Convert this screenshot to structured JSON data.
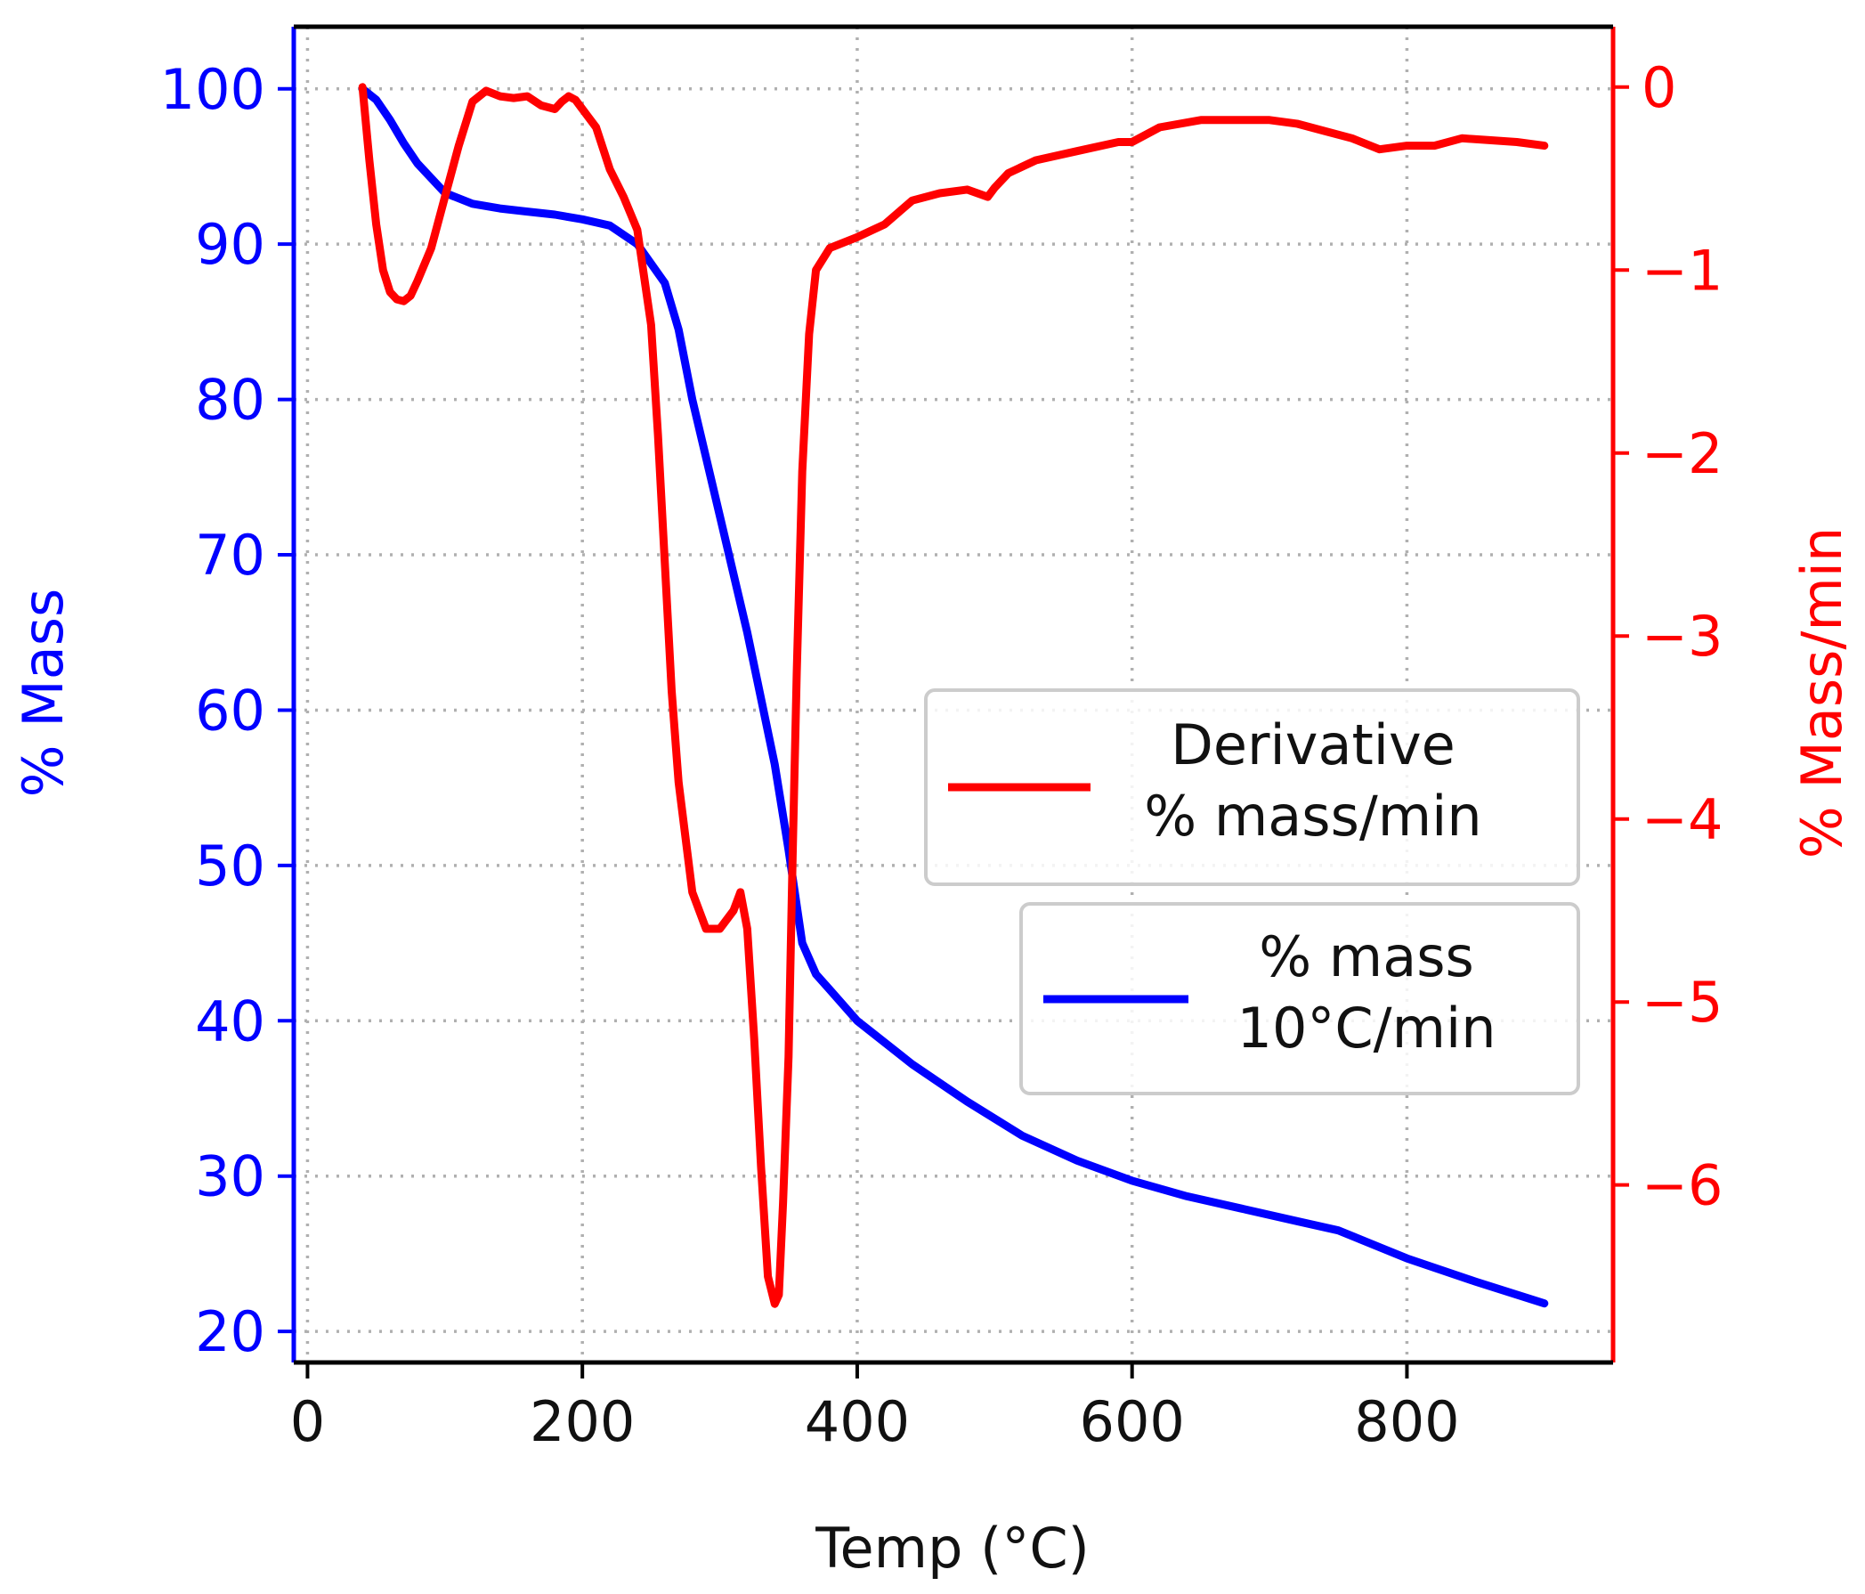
{
  "chart_data": {
    "type": "line",
    "title": "",
    "xlabel": "Temp (°C)",
    "ylabel_left": "% Mass",
    "ylabel_right": "% Mass/min",
    "xlim": [
      -10,
      950
    ],
    "ylim_left": [
      18,
      104
    ],
    "ylim_right": [
      -6.97,
      0.33
    ],
    "xticks": [
      0,
      200,
      400,
      600,
      800
    ],
    "yticks_left": [
      20,
      30,
      40,
      50,
      60,
      70,
      80,
      90,
      100
    ],
    "yticks_right": [
      0,
      -1,
      -2,
      -3,
      -4,
      -5,
      -6
    ],
    "grid": true,
    "colors": {
      "left_axis": "#0000ff",
      "right_axis": "#ff0000",
      "x_axis": "#000000",
      "grid": "#b0b0b0"
    },
    "legend": [
      {
        "series": "derivative",
        "lines": [
          "Derivative",
          "% mass/min"
        ],
        "placement": "center-right upper"
      },
      {
        "series": "mass",
        "lines": [
          "% mass",
          "10°C/min"
        ],
        "placement": "center-right lower"
      }
    ],
    "series": [
      {
        "name": "% mass 10°C/min",
        "key": "mass",
        "axis": "left",
        "color": "#0000ff",
        "x": [
          40,
          50,
          60,
          70,
          80,
          100,
          120,
          140,
          160,
          180,
          200,
          220,
          240,
          260,
          270,
          280,
          300,
          320,
          340,
          350,
          360,
          370,
          380,
          400,
          440,
          480,
          520,
          560,
          600,
          640,
          680,
          720,
          750,
          800,
          850,
          900
        ],
        "y": [
          100,
          99.3,
          98,
          96.5,
          95.2,
          93.3,
          92.6,
          92.3,
          92.1,
          91.9,
          91.6,
          91.2,
          90,
          87.5,
          84.5,
          80,
          72.5,
          65,
          56.5,
          51,
          45,
          43,
          42,
          40,
          37.2,
          34.8,
          32.6,
          31,
          29.7,
          28.7,
          27.9,
          27.1,
          26.5,
          24.7,
          23.2,
          21.8
        ]
      },
      {
        "name": "Derivative % mass/min",
        "key": "derivative",
        "axis": "right",
        "color": "#ff0000",
        "x": [
          40,
          45,
          50,
          55,
          60,
          65,
          70,
          75,
          80,
          90,
          100,
          110,
          120,
          130,
          140,
          150,
          160,
          170,
          180,
          185,
          190,
          195,
          200,
          210,
          220,
          230,
          240,
          250,
          255,
          260,
          265,
          270,
          280,
          290,
          300,
          310,
          315,
          320,
          325,
          330,
          335,
          340,
          343,
          346,
          350,
          353,
          356,
          360,
          365,
          370,
          380,
          400,
          420,
          440,
          460,
          480,
          495,
          500,
          510,
          530,
          560,
          590,
          600,
          620,
          650,
          680,
          700,
          720,
          740,
          760,
          780,
          800,
          820,
          840,
          860,
          880,
          900
        ],
        "y": [
          0,
          -0.4,
          -0.75,
          -1,
          -1.12,
          -1.16,
          -1.17,
          -1.14,
          -1.06,
          -0.88,
          -0.6,
          -0.32,
          -0.08,
          -0.02,
          -0.05,
          -0.06,
          -0.05,
          -0.1,
          -0.12,
          -0.08,
          -0.05,
          -0.07,
          -0.12,
          -0.22,
          -0.45,
          -0.6,
          -0.78,
          -1.3,
          -1.9,
          -2.6,
          -3.3,
          -3.8,
          -4.4,
          -4.6,
          -4.6,
          -4.5,
          -4.4,
          -4.6,
          -5.2,
          -5.9,
          -6.5,
          -6.65,
          -6.6,
          -6.1,
          -5.3,
          -4.2,
          -3.2,
          -2.1,
          -1.35,
          -1.0,
          -0.88,
          -0.82,
          -0.75,
          -0.62,
          -0.58,
          -0.56,
          -0.6,
          -0.55,
          -0.47,
          -0.4,
          -0.35,
          -0.3,
          -0.3,
          -0.22,
          -0.18,
          -0.18,
          -0.18,
          -0.2,
          -0.24,
          -0.28,
          -0.34,
          -0.32,
          -0.32,
          -0.28,
          -0.29,
          -0.3,
          -0.32
        ]
      }
    ]
  }
}
